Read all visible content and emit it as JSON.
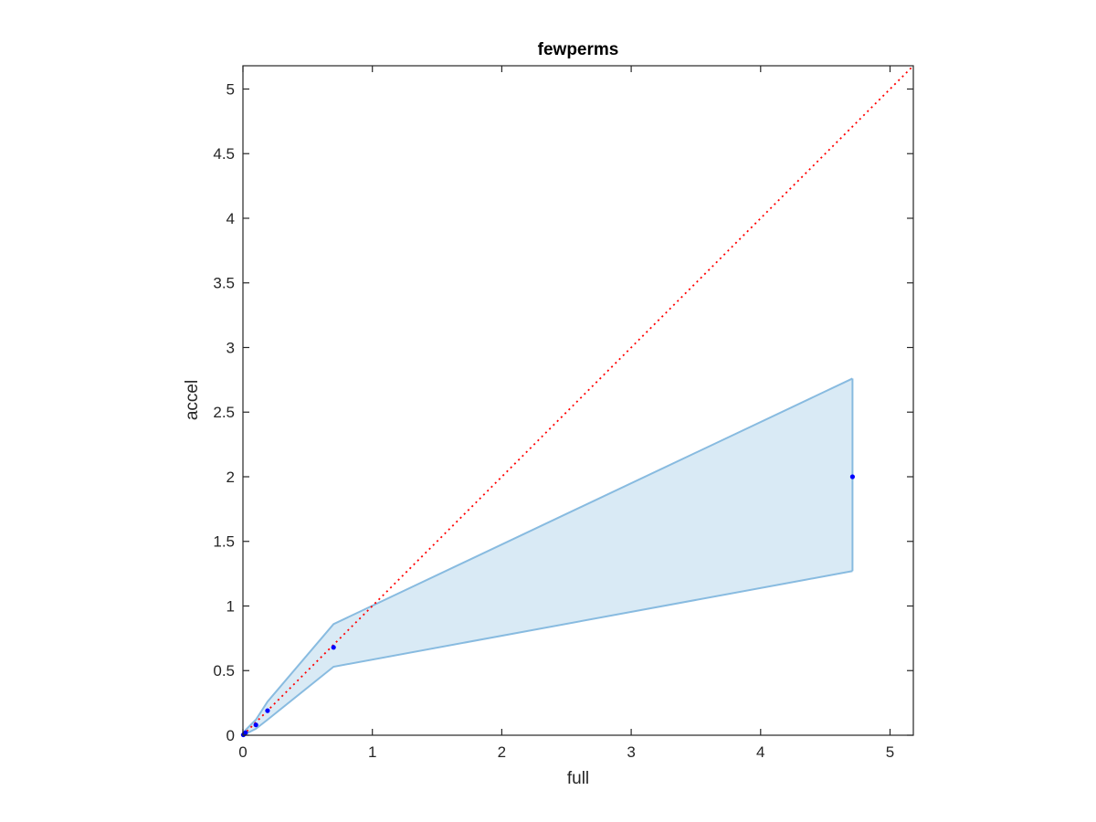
{
  "chart_data": {
    "type": "scatter",
    "title": "fewperms",
    "xlabel": "full",
    "ylabel": "accel",
    "xlim": [
      0,
      5.18
    ],
    "ylim": [
      0,
      5.18
    ],
    "xticks": [
      0,
      1,
      2,
      3,
      4,
      5
    ],
    "xtick_labels": [
      "0",
      "1",
      "2",
      "3",
      "4",
      "5"
    ],
    "yticks": [
      0,
      0.5,
      1,
      1.5,
      2,
      2.5,
      3,
      3.5,
      4,
      4.5,
      5
    ],
    "ytick_labels": [
      "0",
      "0.5",
      "1",
      "1.5",
      "2",
      "2.5",
      "3",
      "3.5",
      "4",
      "4.5",
      "5"
    ],
    "grid": false,
    "series": [
      {
        "kind": "points",
        "color": "#0000ff",
        "x": [
          0.003,
          0.01,
          0.02,
          0.1,
          0.19,
          0.7,
          4.71
        ],
        "y": [
          0.003,
          0.01,
          0.02,
          0.08,
          0.19,
          0.68,
          2.0
        ]
      },
      {
        "kind": "band",
        "color": "#0072bd",
        "fill_opacity": 0.15,
        "x": [
          0.0,
          0.02,
          0.1,
          0.19,
          0.7,
          4.71
        ],
        "upper": [
          0.0,
          0.04,
          0.12,
          0.26,
          0.86,
          2.76
        ],
        "lower": [
          0.0,
          0.01,
          0.05,
          0.12,
          0.53,
          1.27
        ]
      },
      {
        "kind": "reference-line",
        "color": "#ff0000",
        "style": "dotted",
        "x": [
          0,
          5.18
        ],
        "y": [
          0,
          5.18
        ]
      }
    ]
  }
}
